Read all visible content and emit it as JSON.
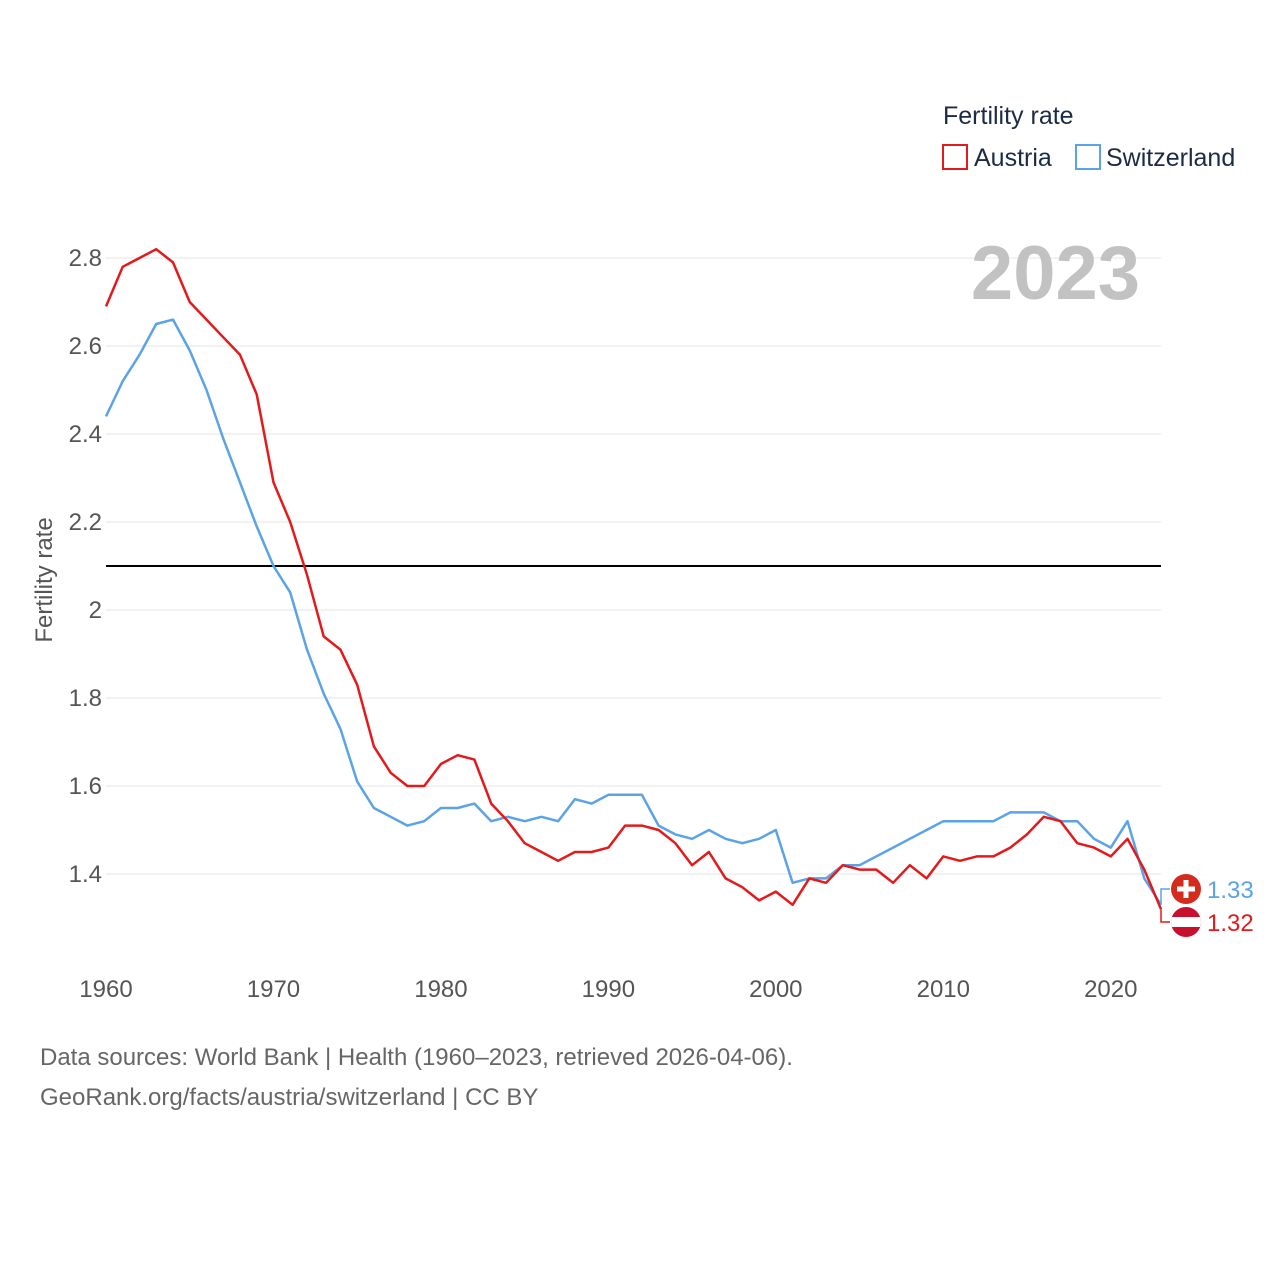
{
  "chart_data": {
    "type": "line",
    "legend_title": "Fertility rate",
    "ylabel": "Fertility rate",
    "xlabel": "",
    "year_label": "2023",
    "xlim": [
      1960,
      2023
    ],
    "ylim": [
      1.3,
      2.85
    ],
    "x_ticks": [
      1960,
      1970,
      1980,
      1990,
      2000,
      2010,
      2020
    ],
    "y_ticks": [
      1.4,
      1.6,
      1.8,
      2.0,
      2.2,
      2.4,
      2.6,
      2.8
    ],
    "y_tick_labels": [
      "1.4",
      "1.6",
      "1.8",
      "2",
      "2.2",
      "2.4",
      "2.6",
      "2.8"
    ],
    "reference_line": 2.1,
    "legend_position": "top-right",
    "x": [
      1960,
      1961,
      1962,
      1963,
      1964,
      1965,
      1966,
      1967,
      1968,
      1969,
      1970,
      1971,
      1972,
      1973,
      1974,
      1975,
      1976,
      1977,
      1978,
      1979,
      1980,
      1981,
      1982,
      1983,
      1984,
      1985,
      1986,
      1987,
      1988,
      1989,
      1990,
      1991,
      1992,
      1993,
      1994,
      1995,
      1996,
      1997,
      1998,
      1999,
      2000,
      2001,
      2002,
      2003,
      2004,
      2005,
      2006,
      2007,
      2008,
      2009,
      2010,
      2011,
      2012,
      2013,
      2014,
      2015,
      2016,
      2017,
      2018,
      2019,
      2020,
      2021,
      2022,
      2023
    ],
    "series": [
      {
        "name": "Austria",
        "color": "#e31a1c",
        "end_label": "1.32",
        "values": [
          2.69,
          2.78,
          2.8,
          2.82,
          2.79,
          2.7,
          2.66,
          2.62,
          2.58,
          2.49,
          2.29,
          2.2,
          2.08,
          1.94,
          1.91,
          1.83,
          1.69,
          1.63,
          1.6,
          1.6,
          1.65,
          1.67,
          1.66,
          1.56,
          1.52,
          1.47,
          1.45,
          1.43,
          1.45,
          1.45,
          1.46,
          1.51,
          1.51,
          1.5,
          1.47,
          1.42,
          1.45,
          1.39,
          1.37,
          1.34,
          1.36,
          1.33,
          1.39,
          1.38,
          1.42,
          1.41,
          1.41,
          1.38,
          1.42,
          1.39,
          1.44,
          1.43,
          1.44,
          1.44,
          1.46,
          1.49,
          1.53,
          1.52,
          1.47,
          1.46,
          1.44,
          1.48,
          1.41,
          1.32
        ]
      },
      {
        "name": "Switzerland",
        "color": "#5ba3e6",
        "end_label": "1.33",
        "values": [
          2.44,
          2.52,
          2.58,
          2.65,
          2.66,
          2.59,
          2.5,
          2.39,
          2.29,
          2.19,
          2.1,
          2.04,
          1.91,
          1.81,
          1.73,
          1.61,
          1.55,
          1.53,
          1.51,
          1.52,
          1.55,
          1.55,
          1.56,
          1.52,
          1.53,
          1.52,
          1.53,
          1.52,
          1.57,
          1.56,
          1.58,
          1.58,
          1.58,
          1.51,
          1.49,
          1.48,
          1.5,
          1.48,
          1.47,
          1.48,
          1.5,
          1.38,
          1.39,
          1.39,
          1.42,
          1.42,
          1.44,
          1.46,
          1.48,
          1.5,
          1.52,
          1.52,
          1.52,
          1.52,
          1.54,
          1.54,
          1.54,
          1.52,
          1.52,
          1.48,
          1.46,
          1.52,
          1.39,
          1.33
        ]
      }
    ]
  },
  "footer": {
    "sources": "Data sources: World Bank | Health (1960–2023, retrieved 2026-04-06).",
    "credit": "GeoRank.org/facts/austria/switzerland | CC BY"
  }
}
